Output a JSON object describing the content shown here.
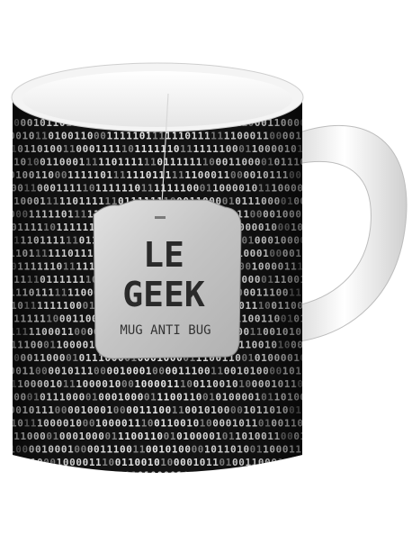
{
  "product": {
    "tag_line1": "LE",
    "tag_line2": "GEEK",
    "tag_subtitle": "MUG ANTI BUG"
  },
  "pattern": {
    "seed_bits": "0001011011100001111000011001101011100101001110100110100101110001110011011001",
    "colors": {
      "bright": "#e8e8e8",
      "dim": "#8a8a8a"
    }
  },
  "colors": {
    "mug_body": "#141414",
    "mug_rim": "#f4f4f4",
    "handle": "#f2f2f2",
    "tag": "#c9c9c9"
  }
}
